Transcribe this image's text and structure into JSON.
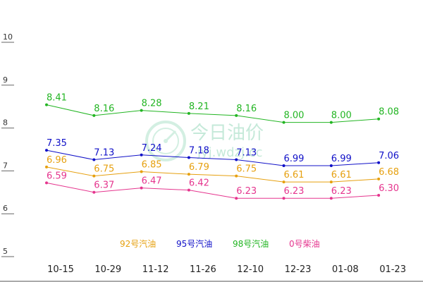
{
  "chart_data": {
    "type": "line",
    "title": "",
    "xlabel": "",
    "ylabel": "",
    "ylim": [
      5,
      10
    ],
    "yticks": [
      "5",
      "6",
      "7",
      "8",
      "9",
      "10"
    ],
    "categories": [
      "10-15",
      "10-29",
      "11-12",
      "11-26",
      "12-10",
      "12-23",
      "01-08",
      "01-23"
    ],
    "series": [
      {
        "name": "92号汽油",
        "color": "#e6a00f",
        "values": [
          6.96,
          6.75,
          6.85,
          6.79,
          6.75,
          6.61,
          6.61,
          6.68
        ]
      },
      {
        "name": "95号汽油",
        "color": "#1010c8",
        "values": [
          7.35,
          7.13,
          7.24,
          7.18,
          7.13,
          6.99,
          6.99,
          7.06
        ]
      },
      {
        "name": "98号汽油",
        "color": "#22b522",
        "values": [
          8.41,
          8.16,
          8.28,
          8.21,
          8.16,
          8.0,
          8.0,
          8.08
        ]
      },
      {
        "name": "0号柴油",
        "color": "#e5358e",
        "values": [
          6.59,
          6.37,
          6.47,
          6.42,
          6.23,
          6.23,
          6.23,
          6.3
        ]
      }
    ],
    "grid": false,
    "legend_position": "bottom-center"
  },
  "watermark": {
    "title": "今日油价",
    "url": "jyj.wdzj.cc",
    "color": "#9fdcc0"
  }
}
